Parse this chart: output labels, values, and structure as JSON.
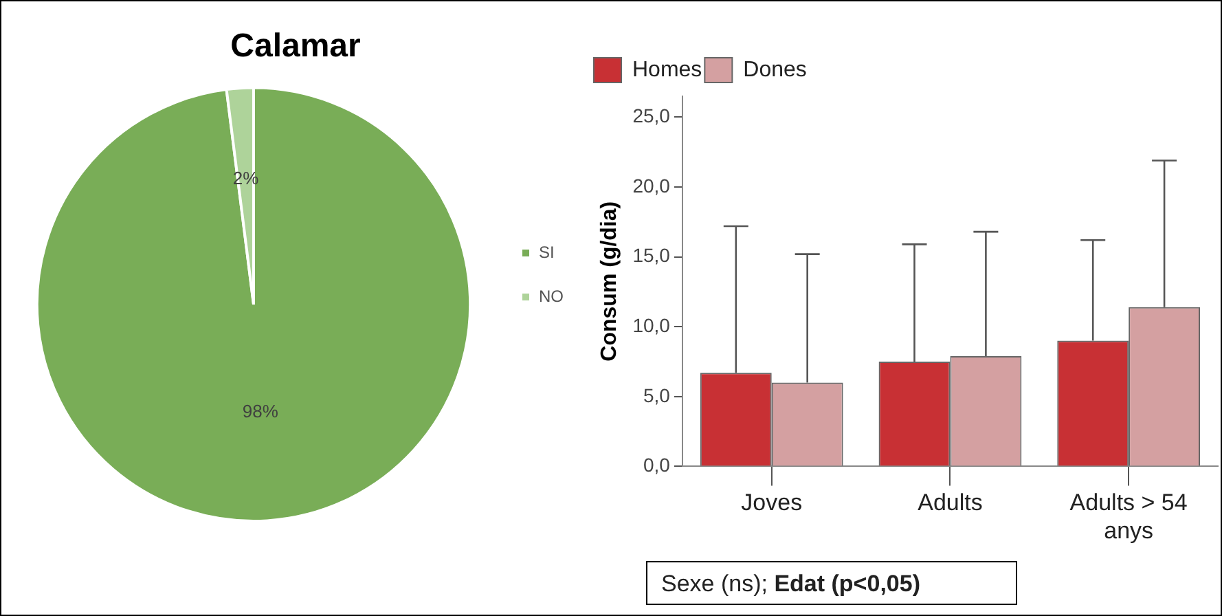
{
  "chart_data": [
    {
      "type": "pie",
      "title": "Calamar",
      "categories": [
        "SI",
        "NO"
      ],
      "values": [
        98,
        2
      ],
      "colors": [
        "#79ad57",
        "#aed39a"
      ],
      "value_labels": [
        "98%",
        "2%"
      ],
      "legend": "right"
    },
    {
      "type": "bar",
      "ylabel": "Consum (g/dia)",
      "categories": [
        "Joves",
        "Adults",
        "Adults > 54 anys"
      ],
      "series": [
        {
          "name": "Homes",
          "color": "#c83034",
          "values": [
            6.7,
            7.5,
            9.0
          ],
          "errors": [
            [
              6.7,
              17.2
            ],
            [
              7.5,
              15.9
            ],
            [
              9.0,
              16.2
            ]
          ]
        },
        {
          "name": "Dones",
          "color": "#d4a0a1",
          "values": [
            6.0,
            7.9,
            11.4
          ],
          "errors": [
            [
              6.0,
              15.2
            ],
            [
              7.9,
              16.8
            ],
            [
              11.4,
              21.9
            ]
          ]
        }
      ],
      "ylim": [
        0,
        26.5
      ],
      "yticks": [
        {
          "value": 0,
          "label": "0,0"
        },
        {
          "value": 5,
          "label": "5,0"
        },
        {
          "value": 10,
          "label": "10,0"
        },
        {
          "value": 15,
          "label": "15,0"
        },
        {
          "value": 20,
          "label": "20,0"
        },
        {
          "value": 25,
          "label": "25,0"
        }
      ],
      "grid": false,
      "legend": "top left",
      "annotations": [
        "Sexe (ns); Edat (p<0,05)"
      ]
    }
  ]
}
